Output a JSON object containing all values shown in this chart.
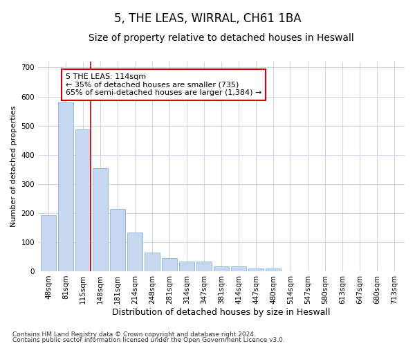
{
  "title": "5, THE LEAS, WIRRAL, CH61 1BA",
  "subtitle": "Size of property relative to detached houses in Heswall",
  "xlabel": "Distribution of detached houses by size in Heswall",
  "ylabel": "Number of detached properties",
  "categories": [
    "48sqm",
    "81sqm",
    "115sqm",
    "148sqm",
    "181sqm",
    "214sqm",
    "248sqm",
    "281sqm",
    "314sqm",
    "347sqm",
    "381sqm",
    "414sqm",
    "447sqm",
    "480sqm",
    "514sqm",
    "547sqm",
    "580sqm",
    "613sqm",
    "647sqm",
    "680sqm",
    "713sqm"
  ],
  "values": [
    193,
    580,
    487,
    355,
    215,
    133,
    63,
    44,
    32,
    32,
    16,
    16,
    9,
    9,
    0,
    0,
    0,
    0,
    0,
    0,
    0
  ],
  "bar_color": "#c5d8f0",
  "bar_edge_color": "#7aaad4",
  "marker_line_index": 2,
  "marker_line_color": "#cc0000",
  "annotation_text": "5 THE LEAS: 114sqm\n← 35% of detached houses are smaller (735)\n65% of semi-detached houses are larger (1,384) →",
  "annotation_box_facecolor": "#ffffff",
  "annotation_box_edgecolor": "#cc0000",
  "footnote1": "Contains HM Land Registry data © Crown copyright and database right 2024.",
  "footnote2": "Contains public sector information licensed under the Open Government Licence v3.0.",
  "bg_color": "#ffffff",
  "plot_bg_color": "#ffffff",
  "grid_color": "#d0d8e8",
  "ylim": [
    0,
    720
  ],
  "yticks": [
    0,
    100,
    200,
    300,
    400,
    500,
    600,
    700
  ],
  "title_fontsize": 12,
  "subtitle_fontsize": 10,
  "xlabel_fontsize": 9,
  "ylabel_fontsize": 8,
  "tick_fontsize": 7.5,
  "footnote_fontsize": 6.5,
  "annot_fontsize": 8
}
